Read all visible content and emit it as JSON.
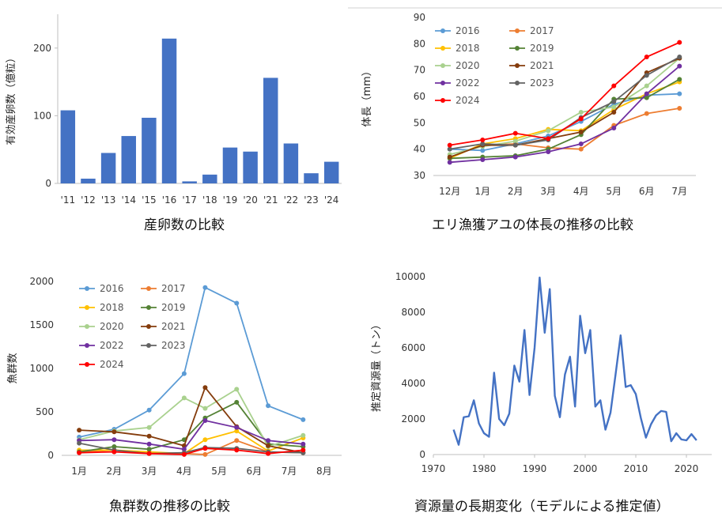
{
  "colors": {
    "y2016": "#5b9bd5",
    "y2017": "#ed7d31",
    "y2018": "#ffc000",
    "y2019": "#548235",
    "y2020": "#a9d18e",
    "y2021": "#843c0c",
    "y2022": "#7030a0",
    "y2023": "#636363",
    "y2024": "#ff0000",
    "bar": "#4472c4",
    "resource": "#4472c4"
  },
  "chart_data": [
    {
      "id": "spawn",
      "type": "bar",
      "title": "産卵数の比較",
      "ylabel": "有効産卵数（億粒）",
      "ylim": [
        0,
        250
      ],
      "yticks": [
        0,
        100,
        200
      ],
      "categories": [
        "'11",
        "'12",
        "'13",
        "'14",
        "'15",
        "'16",
        "'17",
        "'18",
        "'19",
        "'20",
        "'21",
        "'22",
        "'23",
        "'24"
      ],
      "values": [
        108,
        7,
        45,
        70,
        97,
        214,
        3,
        13,
        53,
        47,
        156,
        59,
        15,
        32
      ]
    },
    {
      "id": "length",
      "type": "line",
      "title": "エリ漁獲アユの体長の推移の比較",
      "ylabel": "体長（mm）",
      "ylim": [
        30,
        90
      ],
      "yticks": [
        30,
        40,
        50,
        60,
        70,
        80,
        90
      ],
      "categories": [
        "12月",
        "1月",
        "2月",
        "3月",
        "4月",
        "5月",
        "6月",
        "7月"
      ],
      "series": [
        {
          "name": "2016",
          "color": "y2016",
          "values": [
            40,
            39.5,
            42,
            45,
            50.5,
            57,
            60.5,
            61
          ]
        },
        {
          "name": "2017",
          "color": "y2017",
          "values": [
            null,
            41.5,
            42,
            40.5,
            40,
            49,
            53.5,
            55.5
          ]
        },
        {
          "name": "2018",
          "color": "y2018",
          "values": [
            36.5,
            42,
            44,
            47.5,
            47,
            55,
            61,
            65.5
          ]
        },
        {
          "name": "2019",
          "color": "y2019",
          "values": [
            36.5,
            37,
            37.5,
            40,
            45.5,
            59,
            59.5,
            66.5
          ]
        },
        {
          "name": "2020",
          "color": "y2020",
          "values": [
            38,
            41,
            43,
            47,
            54,
            56,
            64,
            74.5
          ]
        },
        {
          "name": "2021",
          "color": "y2021",
          "values": [
            37,
            41.5,
            41.5,
            44,
            46.5,
            54,
            69,
            74.5
          ]
        },
        {
          "name": "2022",
          "color": "y2022",
          "values": [
            35,
            36,
            37,
            39,
            42,
            48,
            61,
            71.5
          ]
        },
        {
          "name": "2023",
          "color": "y2023",
          "values": [
            40,
            42,
            41.5,
            43.5,
            52,
            58,
            68,
            75
          ]
        },
        {
          "name": "2024",
          "color": "y2024",
          "values": [
            41.5,
            43.5,
            46,
            44,
            51.5,
            64,
            75,
            80.5
          ]
        }
      ]
    },
    {
      "id": "schools",
      "type": "line",
      "title": "魚群数の推移の比較",
      "ylabel": "魚群数",
      "ylim": [
        0,
        2000
      ],
      "yticks": [
        0,
        500,
        1000,
        1500,
        2000
      ],
      "categories": [
        "1月",
        "2月",
        "3月",
        "4月",
        "5月",
        "6月",
        "7月",
        "8月"
      ],
      "x": [
        1,
        2,
        3,
        4,
        4.6,
        5.5,
        6.4,
        7.4
      ],
      "series": [
        {
          "name": "2016",
          "color": "y2016",
          "values": [
            210,
            300,
            520,
            940,
            1930,
            1750,
            570,
            410
          ]
        },
        {
          "name": "2017",
          "color": "y2017",
          "values": [
            40,
            60,
            30,
            20,
            10,
            170,
            40,
            30
          ]
        },
        {
          "name": "2018",
          "color": "y2018",
          "values": [
            60,
            60,
            40,
            20,
            180,
            280,
            50,
            200
          ]
        },
        {
          "name": "2019",
          "color": "y2019",
          "values": [
            40,
            100,
            70,
            180,
            430,
            610,
            130,
            100
          ]
        },
        {
          "name": "2020",
          "color": "y2020",
          "values": [
            180,
            280,
            320,
            660,
            540,
            760,
            100,
            230
          ]
        },
        {
          "name": "2021",
          "color": "y2021",
          "values": [
            290,
            270,
            220,
            110,
            780,
            330,
            110,
            30
          ]
        },
        {
          "name": "2022",
          "color": "y2022",
          "values": [
            170,
            180,
            130,
            70,
            400,
            320,
            170,
            130
          ]
        },
        {
          "name": "2023",
          "color": "y2023",
          "values": [
            140,
            60,
            20,
            30,
            90,
            80,
            40,
            30
          ]
        },
        {
          "name": "2024",
          "color": "y2024",
          "values": [
            30,
            40,
            20,
            10,
            80,
            60,
            20,
            60
          ]
        }
      ]
    },
    {
      "id": "resource",
      "type": "line",
      "title": "資源量の長期変化（モデルによる推定値）",
      "ylabel": "推定資源量（トン）",
      "ylim": [
        0,
        10000
      ],
      "yticks": [
        0,
        2000,
        4000,
        6000,
        8000,
        10000
      ],
      "xlim": [
        1970,
        2025
      ],
      "xticks": [
        1970,
        1980,
        1990,
        2000,
        2010,
        2020
      ],
      "x": [
        1974,
        1975,
        1976,
        1977,
        1978,
        1979,
        1980,
        1981,
        1982,
        1983,
        1984,
        1985,
        1986,
        1987,
        1988,
        1989,
        1990,
        1991,
        1992,
        1993,
        1994,
        1995,
        1996,
        1997,
        1998,
        1999,
        2000,
        2001,
        2002,
        2003,
        2004,
        2005,
        2006,
        2007,
        2008,
        2009,
        2010,
        2011,
        2012,
        2013,
        2014,
        2015,
        2016,
        2017,
        2018,
        2019,
        2020,
        2021,
        2022
      ],
      "values": [
        1400,
        550,
        2100,
        2150,
        3050,
        1750,
        1200,
        1000,
        4600,
        2000,
        1650,
        2300,
        5000,
        4100,
        7000,
        3350,
        6000,
        9950,
        6850,
        9300,
        3300,
        2100,
        4500,
        5500,
        2700,
        7800,
        5700,
        7000,
        2700,
        3050,
        1400,
        2350,
        4500,
        6700,
        3800,
        3900,
        3400,
        2050,
        950,
        1700,
        2200,
        2450,
        2400,
        750,
        1200,
        850,
        800,
        1150,
        800
      ]
    }
  ]
}
